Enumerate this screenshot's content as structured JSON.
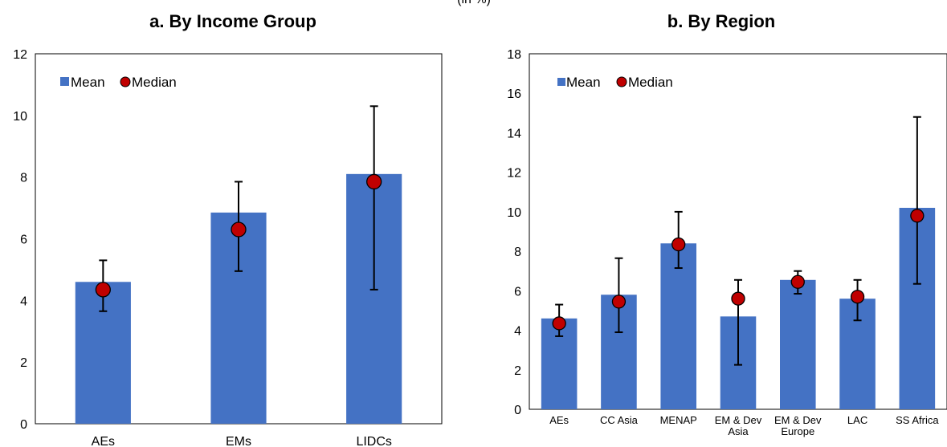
{
  "top_text": "(in %)",
  "chart_data": [
    {
      "type": "bar",
      "title": "a. By Income Group",
      "categories": [
        "AEs",
        "EMs",
        "LIDCs"
      ],
      "series": [
        {
          "name": "Mean",
          "values": [
            4.6,
            6.85,
            8.1
          ]
        },
        {
          "name": "Median",
          "values": [
            4.35,
            6.3,
            7.85
          ]
        }
      ],
      "error_bars": {
        "low": [
          3.65,
          4.95,
          4.35
        ],
        "high": [
          5.3,
          7.85,
          10.3
        ]
      },
      "ylim": [
        0,
        12
      ],
      "yticks": [
        0,
        2,
        4,
        6,
        8,
        10,
        12
      ],
      "legend": "top-left",
      "grid": false,
      "colors": {
        "bar": "#4472C4",
        "marker": "#C00000"
      }
    },
    {
      "type": "bar",
      "title": "b. By Region",
      "categories": [
        "AEs",
        "CC Asia",
        "MENAP",
        "EM & Dev Asia",
        "EM & Dev Europe",
        "LAC",
        "SS Africa"
      ],
      "category_lines": [
        [
          "AEs"
        ],
        [
          "CC Asia"
        ],
        [
          "MENAP"
        ],
        [
          "EM & Dev",
          "Asia"
        ],
        [
          "EM & Dev",
          "Europe"
        ],
        [
          "LAC"
        ],
        [
          "SS Africa"
        ]
      ],
      "series": [
        {
          "name": "Mean",
          "values": [
            4.6,
            5.8,
            8.4,
            4.7,
            6.55,
            5.6,
            10.2
          ]
        },
        {
          "name": "Median",
          "values": [
            4.35,
            5.45,
            8.35,
            5.6,
            6.45,
            5.7,
            9.8
          ]
        }
      ],
      "error_bars": {
        "low": [
          3.7,
          3.9,
          7.15,
          2.25,
          5.85,
          4.5,
          6.35
        ],
        "high": [
          5.3,
          7.65,
          10.0,
          6.55,
          7.0,
          6.55,
          14.8
        ]
      },
      "ylim": [
        0,
        18
      ],
      "yticks": [
        0,
        2,
        4,
        6,
        8,
        10,
        12,
        14,
        16,
        18
      ],
      "legend": "top-left",
      "grid": false,
      "colors": {
        "bar": "#4472C4",
        "marker": "#C00000"
      }
    }
  ]
}
